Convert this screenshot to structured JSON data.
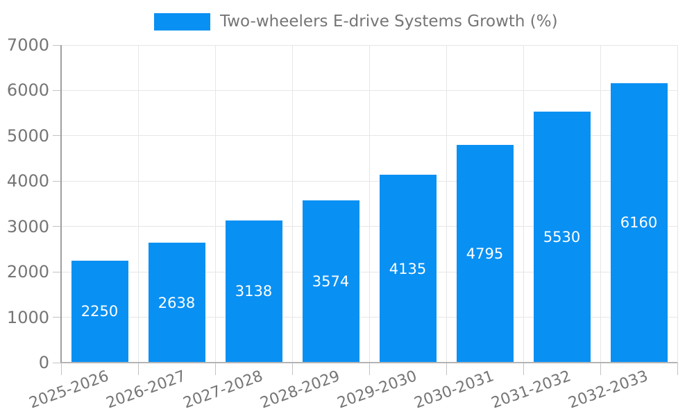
{
  "legend": {
    "label": "Two-wheelers E-drive Systems Growth (%)"
  },
  "chart_data": {
    "type": "bar",
    "title": "Two-wheelers E-drive Systems Growth (%)",
    "categories": [
      "2025-2026",
      "2026-2027",
      "2027-2028",
      "2028-2029",
      "2029-2030",
      "2030-2031",
      "2031-2032",
      "2032-2033"
    ],
    "values": [
      2250,
      2638,
      3138,
      3574,
      4135,
      4795,
      5530,
      6160
    ],
    "bar_labels": [
      "2250",
      "2638",
      "3138",
      "3574",
      "4135",
      "4795",
      "5530",
      "6160"
    ],
    "y_tick_labels": [
      "0",
      "1000",
      "2000",
      "3000",
      "4000",
      "5000",
      "6000",
      "7000"
    ],
    "xlabel": "",
    "ylabel": "",
    "ylim": [
      0,
      7000
    ],
    "ytick_interval": 1000,
    "grid": true,
    "legend_position": "top",
    "bar_labels_inside": "middle",
    "x_label_rotation_deg": -20,
    "colors": {
      "bar": "#0990f3",
      "bar_label": "#ffffff",
      "grid": "#e6e6e6",
      "axis_line": "#9e9e9e",
      "baseline": "#b3b3b3",
      "tick": "#c2c2c2",
      "label": "#757575",
      "background": "#ffffff"
    }
  }
}
